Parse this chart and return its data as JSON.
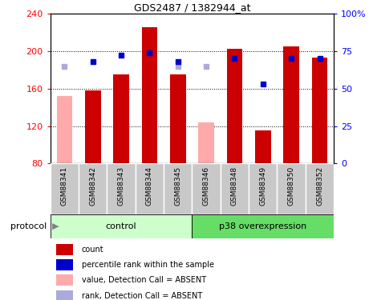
{
  "title": "GDS2487 / 1382944_at",
  "samples": [
    "GSM88341",
    "GSM88342",
    "GSM88343",
    "GSM88344",
    "GSM88345",
    "GSM88346",
    "GSM88348",
    "GSM88349",
    "GSM88350",
    "GSM88352"
  ],
  "bar_values": [
    null,
    158,
    175,
    225,
    175,
    null,
    202,
    115,
    205,
    193
  ],
  "bar_absent_values": [
    152,
    null,
    null,
    null,
    null,
    124,
    null,
    null,
    null,
    null
  ],
  "rank_values": [
    null,
    68,
    72,
    74,
    68,
    null,
    70,
    53,
    70,
    70
  ],
  "rank_absent_values": [
    65,
    null,
    null,
    null,
    65,
    65,
    null,
    null,
    null,
    null
  ],
  "ylim_left": [
    80,
    240
  ],
  "ylim_right": [
    0,
    100
  ],
  "yticks_left": [
    80,
    120,
    160,
    200,
    240
  ],
  "ytick_labels_left": [
    "80",
    "120",
    "160",
    "200",
    "240"
  ],
  "yticks_right": [
    0,
    25,
    50,
    75,
    100
  ],
  "ytick_labels_right": [
    "0",
    "25",
    "50",
    "75",
    "100%"
  ],
  "n_control": 5,
  "n_p38": 5,
  "bar_color": "#CC0000",
  "bar_absent_color": "#FFAAAA",
  "rank_color": "#0000CC",
  "rank_absent_color": "#AAAADD",
  "control_bg": "#CCFFCC",
  "p38_bg": "#66DD66",
  "label_bg": "#C8C8C8",
  "bar_width": 0.55
}
